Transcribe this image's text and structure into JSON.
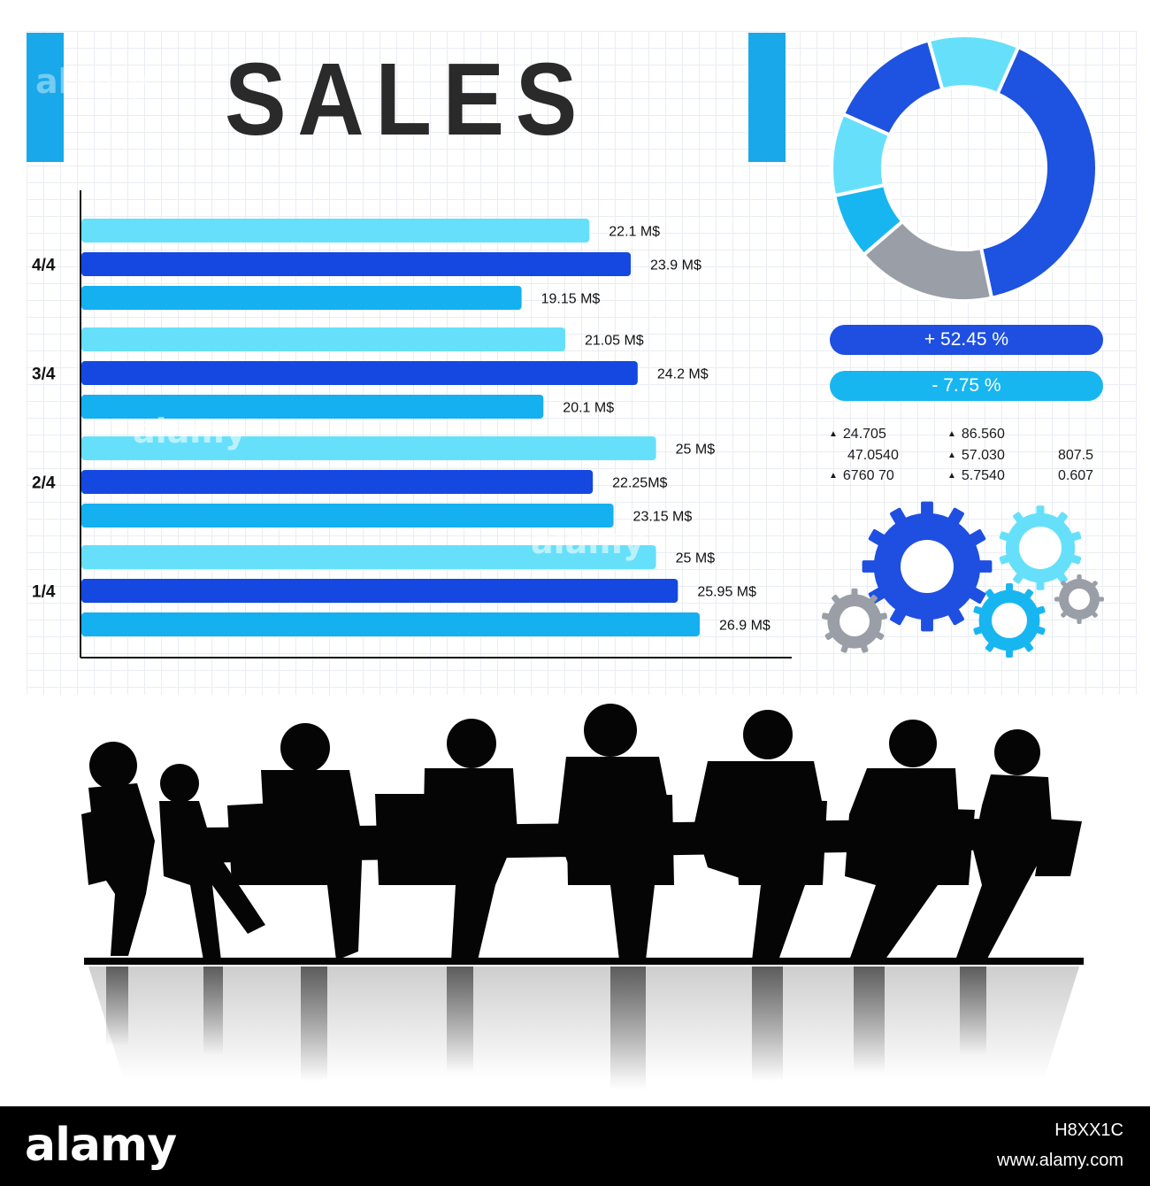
{
  "title": "SALES",
  "chart_data": [
    {
      "type": "bar",
      "orientation": "horizontal",
      "title": "SALES",
      "categories": [
        "4/4",
        "3/4",
        "2/4",
        "1/4"
      ],
      "series": [
        {
          "color": "#66e0fa",
          "values": [
            22.1,
            21.05,
            25,
            25
          ]
        },
        {
          "color": "#1448e0",
          "values": [
            23.9,
            24.2,
            22.25,
            25.95
          ]
        },
        {
          "color": "#14b0f0",
          "values": [
            19.15,
            20.1,
            23.15,
            26.9
          ]
        }
      ],
      "labels": [
        [
          "22.1 M$",
          "23.9 M$",
          "19.15 M$"
        ],
        [
          "21.05 M$",
          "24.2 M$",
          "20.1 M$"
        ],
        [
          "25 M$",
          "22.25M$",
          "23.15 M$"
        ],
        [
          "25 M$",
          "25.95 M$",
          "26.9 M$"
        ]
      ],
      "xlim": [
        0,
        30
      ],
      "grid": true
    },
    {
      "type": "pie",
      "donut": true,
      "segments": [
        {
          "value": 40,
          "color": "#1e52e0"
        },
        {
          "value": 17,
          "color": "#9a9ea6"
        },
        {
          "value": 8,
          "color": "#18b6f0"
        },
        {
          "value": 10,
          "color": "#66e0fa"
        },
        {
          "value": 14,
          "color": "#1e52e0"
        },
        {
          "value": 11,
          "color": "#66e0fa"
        }
      ]
    }
  ],
  "indicators": [
    {
      "text": "+ 52.45 %",
      "color": "#1e4fe0"
    },
    {
      "text": "- 7.75 %",
      "color": "#18b6f0"
    }
  ],
  "stats": {
    "col1": [
      "24.705",
      "47.0540",
      "6760 70"
    ],
    "col2": [
      "86.560",
      "57.030",
      "5.7540"
    ],
    "col3": [
      "807.5",
      "0.607"
    ],
    "marker": "▲"
  },
  "colors": {
    "accent": "#19a8ea",
    "dark_blue": "#1448e0",
    "mid_blue": "#14b0f0",
    "light_blue": "#66e0fa",
    "gray": "#9a9ea6"
  },
  "icons": [
    "gear-icon",
    "gear-icon",
    "gear-icon",
    "gear-icon",
    "gear-icon"
  ],
  "watermark": "alamy",
  "footer": {
    "logo": "alamy",
    "image_id": "H8XX1C",
    "url": "www.alamy.com"
  }
}
